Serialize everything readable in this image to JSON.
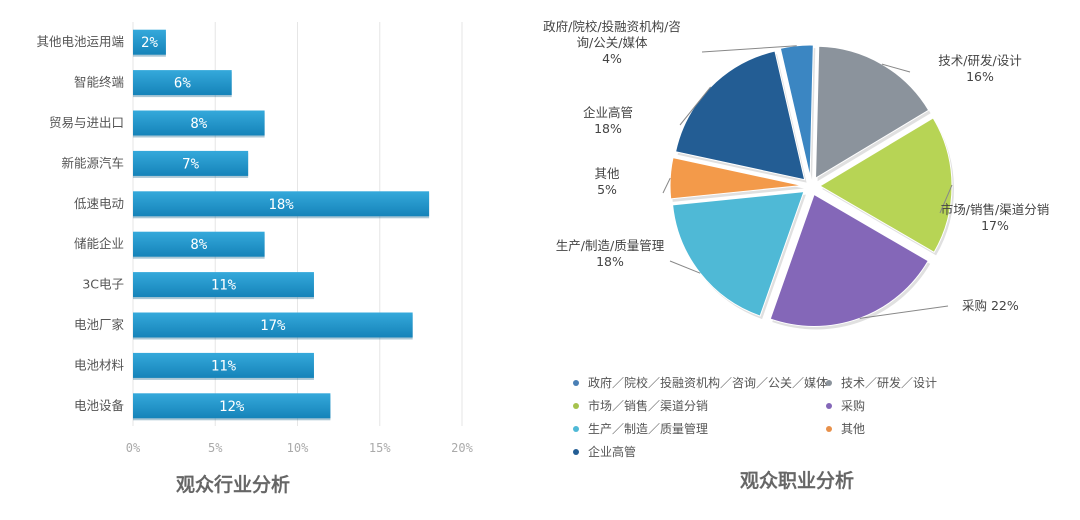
{
  "chart_data": [
    {
      "type": "bar",
      "orientation": "horizontal",
      "title": "观众行业分析",
      "categories": [
        "其他电池运用端",
        "智能终端",
        "贸易与进出口",
        "新能源汽车",
        "低速电动",
        "储能企业",
        "3C电子",
        "电池厂家",
        "电池材料",
        "电池设备"
      ],
      "values": [
        2,
        6,
        8,
        7,
        18,
        8,
        11,
        17,
        11,
        12
      ],
      "value_labels": [
        "2%",
        "6%",
        "8%",
        "7%",
        "18%",
        "8%",
        "11%",
        "17%",
        "11%",
        "12%"
      ],
      "xlim": [
        0,
        20
      ],
      "xticks": [
        "0%",
        "5%",
        "10%",
        "15%",
        "20%"
      ],
      "xtick_values": [
        0,
        5,
        10,
        15,
        20
      ],
      "grid": true,
      "color": "#1b8fc6"
    },
    {
      "type": "pie",
      "title": "观众职业分析",
      "slices": [
        {
          "label": "政府/院校/投融资机构/咨询/公关/媒体",
          "label_lines": [
            "政府/院校/投融资机构/咨",
            "询/公关/媒体",
            "4%"
          ],
          "value": 4,
          "color": "#3b86c2"
        },
        {
          "label": "技术/研发/设计",
          "label_lines": [
            "技术/研发/设计",
            "16%"
          ],
          "value": 16,
          "color": "#8b939c"
        },
        {
          "label": "市场/销售/渠道分销",
          "label_lines": [
            "市场/销售/渠道分销",
            "17%"
          ],
          "value": 17,
          "color": "#b7d455"
        },
        {
          "label": "采购",
          "label_lines": [
            "采购 22%"
          ],
          "value": 22,
          "color": "#8467b8"
        },
        {
          "label": "生产/制造/质量管理",
          "label_lines": [
            "生产/制造/质量管理",
            "18%"
          ],
          "value": 18,
          "color": "#4fb9d6"
        },
        {
          "label": "其他",
          "label_lines": [
            "其他",
            "5%"
          ],
          "value": 5,
          "color": "#f39a4a"
        },
        {
          "label": "企业高管",
          "label_lines": [
            "企业高管",
            "18%"
          ],
          "value": 18,
          "color": "#235d94"
        }
      ],
      "legend": {
        "position": "bottom",
        "items": [
          {
            "label": "政府／院校／投融资机构／咨询／公关／媒体",
            "color": "#4a7fb5"
          },
          {
            "label": "技术／研发／设计",
            "color": "#8b939c"
          },
          {
            "label": "市场／销售／渠道分销",
            "color": "#a6c24d"
          },
          {
            "label": "采购",
            "color": "#8467b8"
          },
          {
            "label": "生产／制造／质量管理",
            "color": "#4fb9d6"
          },
          {
            "label": "其他",
            "color": "#e8904a"
          },
          {
            "label": "企业高管",
            "color": "#235d94"
          }
        ]
      }
    }
  ]
}
